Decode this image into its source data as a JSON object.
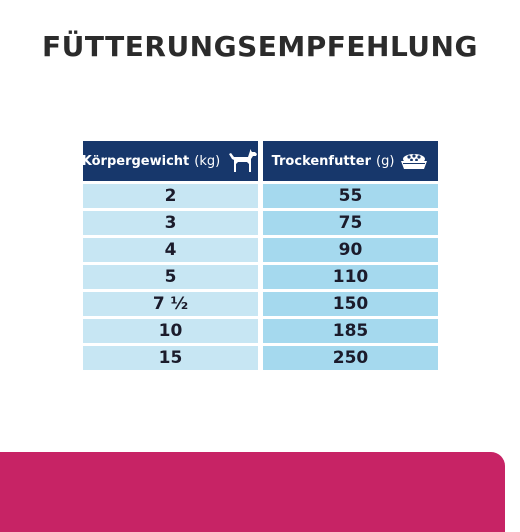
{
  "title": "FÜTTERUNGSEMPFEHLUNG",
  "table": {
    "headers": {
      "weight_label": "Körpergewicht",
      "weight_unit": "(kg)",
      "food_label": "Trockenfutter",
      "food_unit": "(g)"
    },
    "icons": {
      "weight": "dog-icon",
      "food": "food-bowl-icon"
    },
    "rows": [
      {
        "weight": "2",
        "food": "55"
      },
      {
        "weight": "3",
        "food": "75"
      },
      {
        "weight": "4",
        "food": "90"
      },
      {
        "weight": "5",
        "food": "110"
      },
      {
        "weight": "7 ½",
        "food": "150"
      },
      {
        "weight": "10",
        "food": "185"
      },
      {
        "weight": "15",
        "food": "250"
      }
    ]
  },
  "colors": {
    "header": "#17376b",
    "left_cell": "#c7e6f3",
    "right_cell": "#a5d9ee",
    "band": "#c72365"
  }
}
